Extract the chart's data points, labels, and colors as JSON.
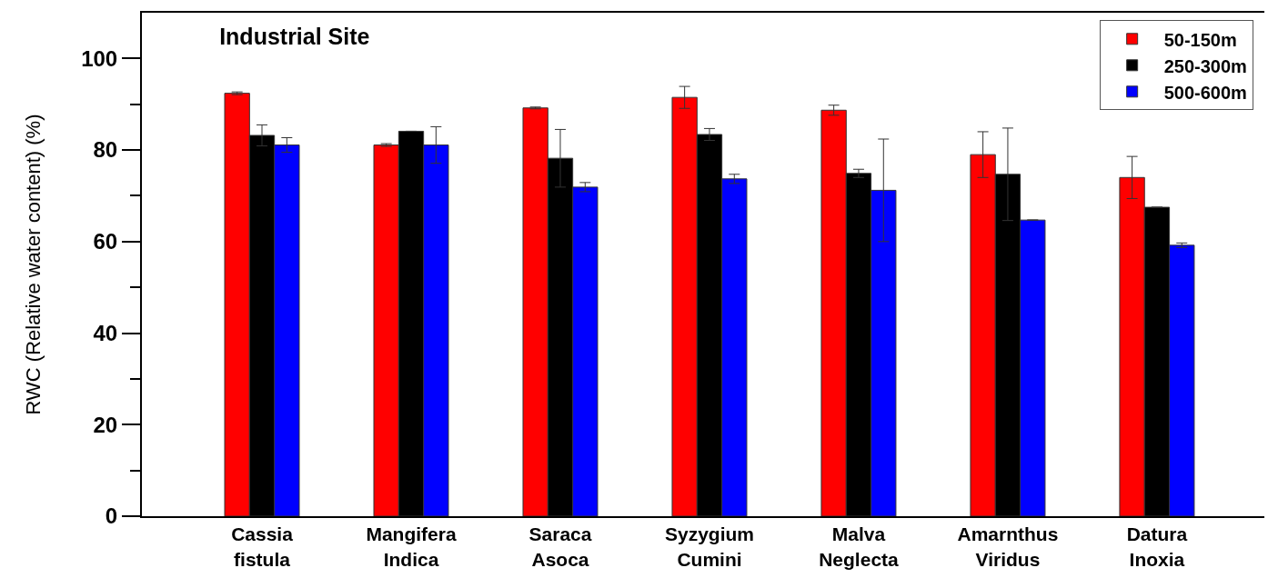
{
  "chart_data": {
    "type": "bar",
    "title": "Industrial Site",
    "ylabel": "RWC (Relative water content) (%)",
    "categories": [
      "Cassia fistula",
      "Mangifera Indica",
      "Saraca Asoca",
      "Syzygium Cumini",
      "Malva Neglecta",
      "Amarnthus Viridus",
      "Datura Inoxia"
    ],
    "series": [
      {
        "name": "50-150m",
        "color": "#ff0000",
        "values": [
          92.4,
          81.1,
          89.2,
          91.5,
          88.7,
          79.0,
          74.0
        ],
        "errors": [
          0.3,
          0.3,
          0.2,
          2.4,
          1.1,
          5.0,
          4.6
        ]
      },
      {
        "name": "250-300m",
        "color": "#000000",
        "values": [
          83.2,
          84.1,
          78.2,
          83.4,
          74.9,
          74.7,
          67.5
        ],
        "errors": [
          2.3,
          null,
          6.3,
          1.3,
          0.9,
          10.1,
          null
        ]
      },
      {
        "name": "500-600m",
        "color": "#0000ff",
        "values": [
          81.1,
          81.1,
          71.9,
          73.7,
          71.2,
          64.7,
          59.2
        ],
        "errors": [
          1.6,
          4.0,
          1.0,
          1.0,
          11.2,
          null,
          0.5
        ]
      }
    ],
    "ylim": [
      0,
      110
    ],
    "yticks": [
      0,
      {
        "value": 10,
        "label": null
      },
      20,
      {
        "value": 30,
        "label": null
      },
      40,
      {
        "value": 50,
        "label": null
      },
      60,
      {
        "value": 70,
        "label": null
      },
      80,
      {
        "value": 90,
        "label": null
      },
      100
    ],
    "grid": false,
    "legend": "top right"
  }
}
